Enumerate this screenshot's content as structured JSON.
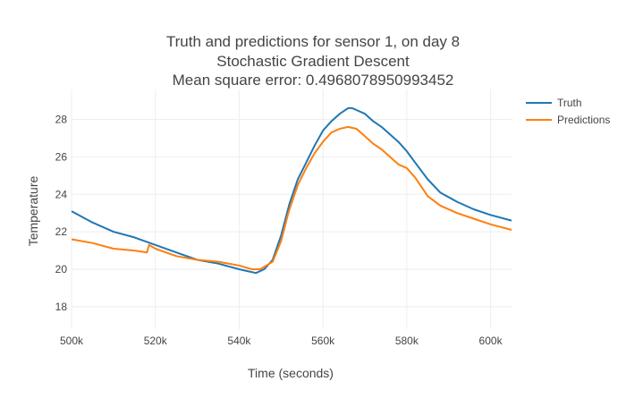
{
  "chart_data": {
    "type": "line",
    "title_lines": [
      "Truth and predictions for sensor 1, on day 8",
      "Stochastic Gradient Descent",
      "Mean square error: 0.4968078950993452"
    ],
    "xlabel": "Time (seconds)",
    "ylabel": "Temperature",
    "xlim": [
      500000,
      605000
    ],
    "ylim": [
      16.8,
      29.6
    ],
    "x_ticks": [
      500000,
      520000,
      540000,
      560000,
      580000,
      600000
    ],
    "x_tick_labels": [
      "500k",
      "520k",
      "540k",
      "560k",
      "580k",
      "600k"
    ],
    "y_ticks": [
      18,
      20,
      22,
      24,
      26,
      28
    ],
    "y_tick_labels": [
      "18",
      "20",
      "22",
      "24",
      "26",
      "28"
    ],
    "grid": true,
    "legend_position": "top-right",
    "series": [
      {
        "name": "Truth",
        "color": "#1f77b4",
        "x": [
          500000,
          505000,
          510000,
          515000,
          520000,
          525000,
          530000,
          535000,
          540000,
          542000,
          544000,
          546000,
          548000,
          550000,
          552000,
          554000,
          556000,
          558000,
          560000,
          562000,
          564000,
          566000,
          567000,
          568000,
          570000,
          572000,
          574000,
          576000,
          578000,
          580000,
          582000,
          585000,
          588000,
          592000,
          596000,
          600000,
          605000
        ],
        "y": [
          23.1,
          22.5,
          22.0,
          21.7,
          21.3,
          20.9,
          20.5,
          20.3,
          20.0,
          19.9,
          19.8,
          20.0,
          20.5,
          21.8,
          23.5,
          24.8,
          25.7,
          26.6,
          27.4,
          27.9,
          28.3,
          28.6,
          28.6,
          28.5,
          28.3,
          27.9,
          27.6,
          27.2,
          26.8,
          26.3,
          25.7,
          24.8,
          24.1,
          23.6,
          23.2,
          22.9,
          22.6
        ]
      },
      {
        "name": "Predictions",
        "color": "#ff7f0e",
        "x": [
          500000,
          505000,
          510000,
          515000,
          518000,
          518500,
          520000,
          525000,
          530000,
          535000,
          540000,
          543000,
          545000,
          548000,
          550000,
          551500,
          552000,
          554000,
          556000,
          558000,
          560000,
          562000,
          564000,
          566000,
          568000,
          570000,
          572000,
          574000,
          576000,
          578000,
          580000,
          582000,
          585000,
          588000,
          592000,
          596000,
          600000,
          605000
        ],
        "y": [
          21.6,
          21.4,
          21.1,
          21.0,
          20.9,
          21.3,
          21.1,
          20.7,
          20.5,
          20.4,
          20.2,
          20.0,
          20.0,
          20.4,
          21.5,
          22.8,
          23.2,
          24.5,
          25.4,
          26.2,
          26.8,
          27.3,
          27.5,
          27.6,
          27.5,
          27.1,
          26.7,
          26.4,
          26.0,
          25.6,
          25.4,
          24.9,
          23.9,
          23.4,
          23.0,
          22.7,
          22.4,
          22.1
        ]
      }
    ]
  }
}
